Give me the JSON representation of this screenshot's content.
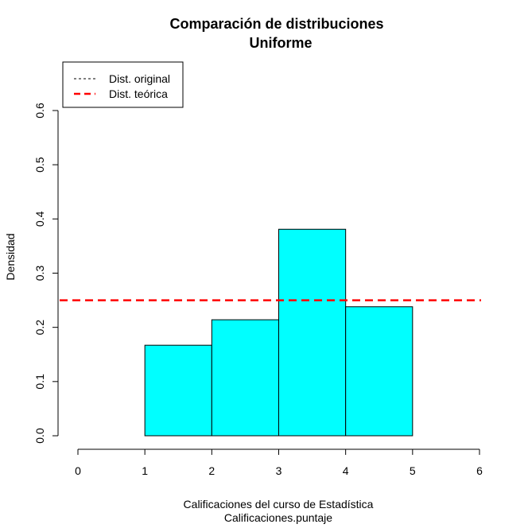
{
  "chart_data": {
    "type": "bar",
    "title": "Comparación de distribuciones",
    "subtitle": "Uniforme",
    "xlabel": "Calificaciones del curso de Estadística",
    "xlabel_sub": "Calificaciones.puntaje",
    "ylabel": "Densidad",
    "xlim": [
      0,
      6
    ],
    "ylim": [
      0,
      0.6
    ],
    "x_ticks": [
      "0",
      "1",
      "2",
      "3",
      "4",
      "5",
      "6"
    ],
    "y_ticks": [
      "0.0",
      "0.1",
      "0.2",
      "0.3",
      "0.4",
      "0.5",
      "0.6"
    ],
    "bins": [
      {
        "start": 1,
        "end": 2,
        "density": 0.167
      },
      {
        "start": 2,
        "end": 3,
        "density": 0.214
      },
      {
        "start": 3,
        "end": 4,
        "density": 0.381
      },
      {
        "start": 4,
        "end": 5,
        "density": 0.238
      }
    ],
    "bar_color": "#00FFFF",
    "theoretical_line": {
      "y": 0.25,
      "color": "#FF0000",
      "style": "dashed"
    },
    "legend": {
      "position": "top-left",
      "entries": [
        {
          "label": "Dist. original",
          "color": "#000000",
          "style": "dashed"
        },
        {
          "label": "Dist. teórica",
          "color": "#FF0000",
          "style": "dashed"
        }
      ]
    },
    "grid": false
  }
}
